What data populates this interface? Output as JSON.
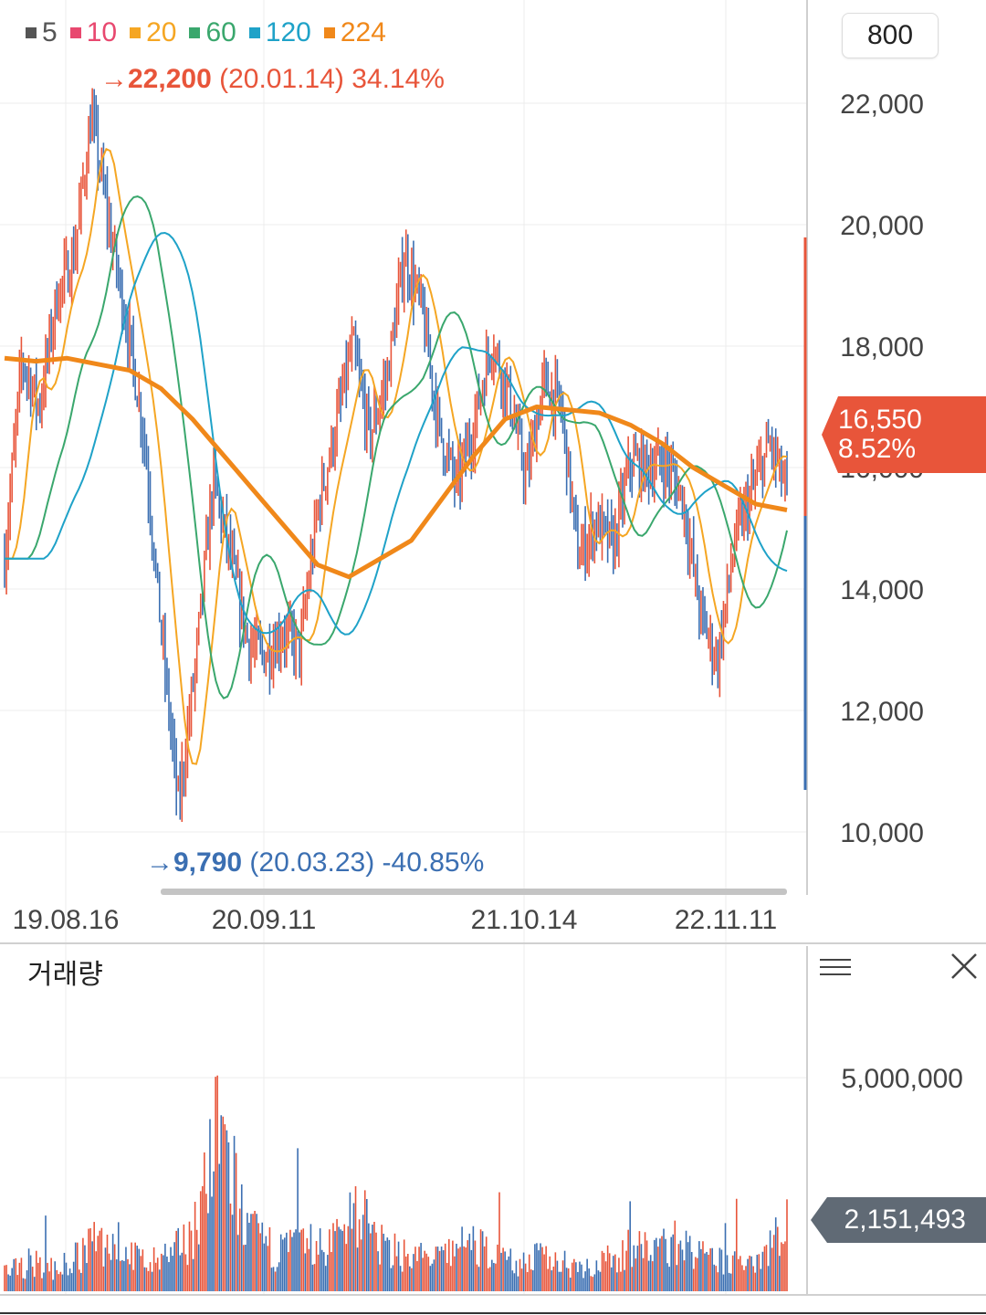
{
  "legend": [
    {
      "label": "5",
      "color": "#555555"
    },
    {
      "label": "10",
      "color": "#e8486f"
    },
    {
      "label": "20",
      "color": "#f5a623"
    },
    {
      "label": "60",
      "color": "#3aa76d"
    },
    {
      "label": "120",
      "color": "#1fa2c8"
    },
    {
      "label": "224",
      "color": "#f0881a"
    }
  ],
  "controls": {
    "count": "800"
  },
  "max_annotation": {
    "arrow": "→",
    "value": "22,200",
    "date": "(20.01.14)",
    "pct": "34.14%"
  },
  "min_annotation": {
    "arrow": "→",
    "value": "9,790",
    "date": "(20.03.23)",
    "pct": "-40.85%"
  },
  "current_price": {
    "value": "16,550",
    "change": "8.52%"
  },
  "volume_panel": {
    "title": "거래량",
    "last_volume": "2,151,493"
  },
  "colors": {
    "up": "#e8553a",
    "down": "#3b6fb2",
    "ma224": "#f0881a",
    "grid": "#ececec"
  },
  "chart_data": [
    {
      "type": "line",
      "title": "",
      "y_axis_ticks": [
        "22,000",
        "20,000",
        "18,000",
        "16,000",
        "14,000",
        "12,000",
        "10,000"
      ],
      "x_axis_ticks": [
        "19.08.16",
        "20.09.11",
        "21.10.14",
        "22.11.11"
      ],
      "ylim": [
        9000,
        23000
      ],
      "series": [
        {
          "name": "price",
          "values": [
            14500,
            17800,
            17000,
            18800,
            19500,
            21800,
            20000,
            18400,
            16600,
            13300,
            10400,
            12800,
            15800,
            14500,
            13100,
            12900,
            13300,
            13000,
            15300,
            16600,
            18000,
            16500,
            17500,
            19500,
            18600,
            16600,
            15700,
            16700,
            18100,
            17200,
            15800,
            17400,
            17000,
            14500,
            15100,
            14700,
            16100,
            16000,
            16100,
            15500,
            13600,
            12800,
            14800,
            15600,
            16400,
            15600
          ]
        },
        {
          "name": "224",
          "values": [
            17800,
            17750,
            17800,
            17700,
            17600,
            17300,
            16800,
            16200,
            15600,
            15000,
            14400,
            14200,
            14500,
            14800,
            15500,
            16200,
            16800,
            17000,
            16950,
            16900,
            16700,
            16400,
            16000,
            15700,
            15400,
            15300
          ]
        }
      ]
    },
    {
      "type": "bar",
      "title": "거래량",
      "y_axis_ticks": [
        "5,000,000"
      ],
      "ylim": [
        0,
        7000000
      ],
      "values": [
        600000,
        900000,
        700000,
        1300000,
        1700000,
        1000000,
        900000,
        2000000,
        5200000,
        1900000,
        1300000,
        1500000,
        1400000,
        2800000,
        1400000,
        1200000,
        1000000,
        1500000,
        1300000,
        900000,
        1100000,
        900000,
        800000,
        1300000,
        1400000,
        1600000,
        1000000,
        900000,
        1200000,
        2151493
      ]
    }
  ]
}
